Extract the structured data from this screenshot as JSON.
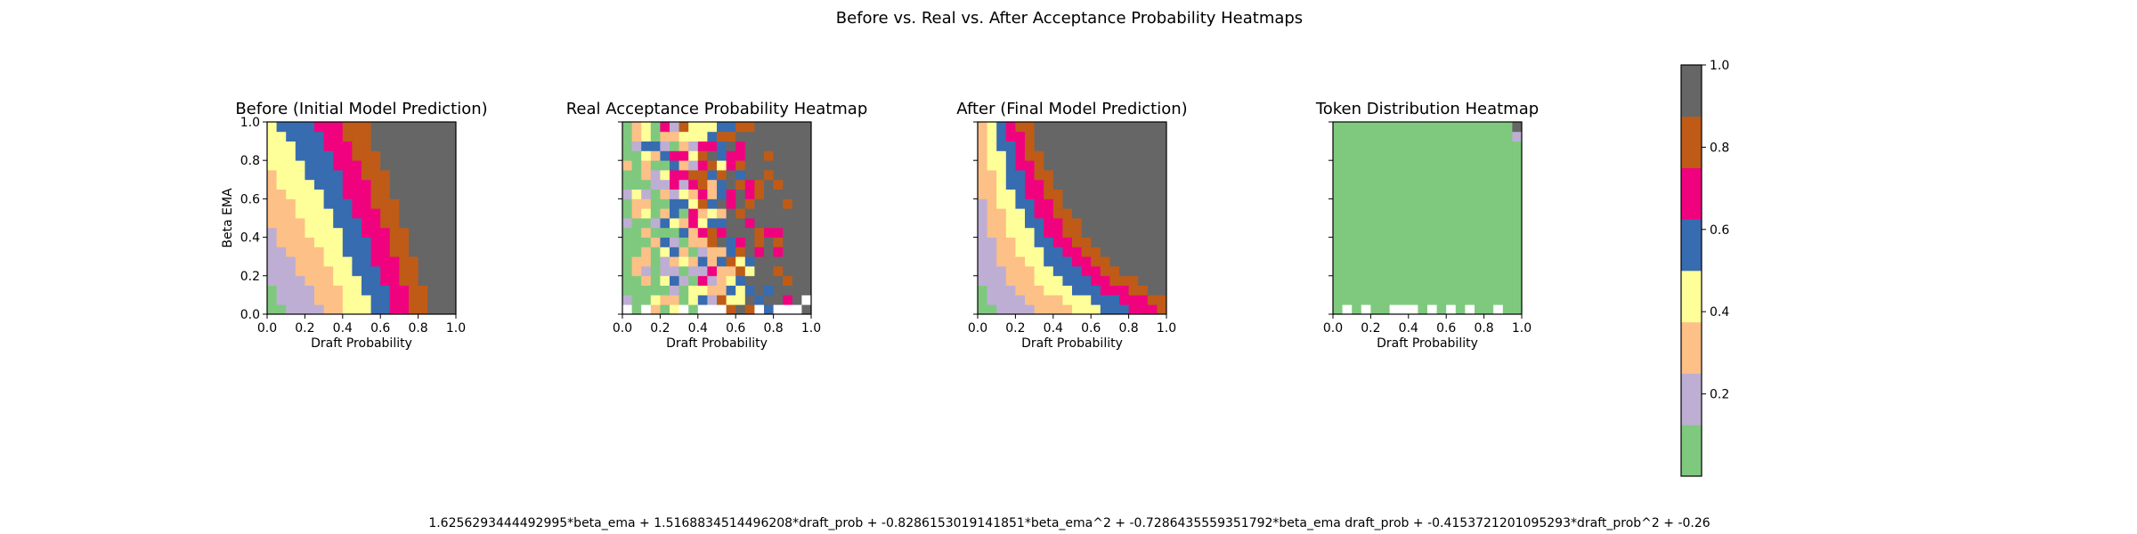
{
  "figure": {
    "title": "Before vs. Real vs. After Acceptance Probability Heatmaps",
    "formula": "1.6256293444492995*beta_ema + 1.5168834514496208*draft_prob + -0.8286153019141851*beta_ema^2 + -0.7286435559351792*beta_ema draft_prob + -0.4153721201095293*draft_prob^2 + -0.26"
  },
  "chart_data": [
    {
      "type": "heatmap",
      "title": "Before (Initial Model Prediction)",
      "xlabel": "Draft Probability",
      "ylabel": "Beta EMA",
      "xlim": [
        0,
        1
      ],
      "ylim": [
        0,
        1
      ],
      "grid_size": 20,
      "xticks": [
        "0.0",
        "0.2",
        "0.4",
        "0.6",
        "0.8",
        "1.0"
      ],
      "yticks": [
        "0.0",
        "0.2",
        "0.4",
        "0.6",
        "0.8",
        "1.0"
      ],
      "value_formula": "1.6256293444492995*beta_ema + 1.5168834514496208*draft_prob + -0.8286153019141851*beta_ema^2 + -0.7286435559351792*beta_ema draft_prob + -0.4153721201095293*draft_prob^2 + -0.26",
      "pattern": "value increases with both draft probability and beta EMA; lowest at the origin, highest at draft probability near 1"
    },
    {
      "type": "heatmap",
      "title": "Real Acceptance Probability Heatmap",
      "xlabel": "Draft Probability",
      "ylabel": "",
      "xlim": [
        0,
        1
      ],
      "ylim": [
        0,
        1
      ],
      "grid_size": 20,
      "xticks": [
        "0.0",
        "0.2",
        "0.4",
        "0.6",
        "0.8",
        "1.0"
      ],
      "yticks": [
        "0.0",
        "0.2",
        "0.4",
        "0.6",
        "0.8",
        "1.0"
      ],
      "pattern": "noisy observed acceptance rates; mostly green at low draft probability, mostly gray at draft probability above 0.6; empty (white) cells near the bottom-right"
    },
    {
      "type": "heatmap",
      "title": "After (Final Model Prediction)",
      "xlabel": "Draft Probability",
      "ylabel": "",
      "xlim": [
        0,
        1
      ],
      "ylim": [
        0,
        1
      ],
      "grid_size": 20,
      "xticks": [
        "0.0",
        "0.2",
        "0.4",
        "0.6",
        "0.8",
        "1.0"
      ],
      "yticks": [
        "0.0",
        "0.2",
        "0.4",
        "0.6",
        "0.8",
        "1.0"
      ],
      "pattern": "smooth fitted surface; rises faster than the initial model, reaching gray (about 1.0) for draft probability above 0.6 and high beta EMA"
    },
    {
      "type": "heatmap",
      "title": "Token Distribution Heatmap",
      "xlabel": "Draft Probability",
      "ylabel": "",
      "xlim": [
        0,
        1
      ],
      "ylim": [
        0,
        1
      ],
      "grid_size": 20,
      "xticks": [
        "0.0",
        "0.2",
        "0.4",
        "0.6",
        "0.8",
        "1.0"
      ],
      "yticks": [
        "0.0",
        "0.2",
        "0.4",
        "0.6",
        "0.8",
        "1.0"
      ],
      "pattern": "almost entirely the lowest color bin; a few empty cells in the bottom row and one gray and one lavender cell at the top-right corner"
    }
  ],
  "colorbar": {
    "ticks": [
      "0.2",
      "0.4",
      "0.6",
      "0.8",
      "1.0"
    ],
    "range": [
      0,
      1
    ],
    "bins": 8,
    "colors": [
      "#7fc97f",
      "#beaed4",
      "#fdc086",
      "#ffff99",
      "#386cb0",
      "#f0027f",
      "#bf5b17",
      "#666666"
    ],
    "empty_color": "#ffffff"
  }
}
